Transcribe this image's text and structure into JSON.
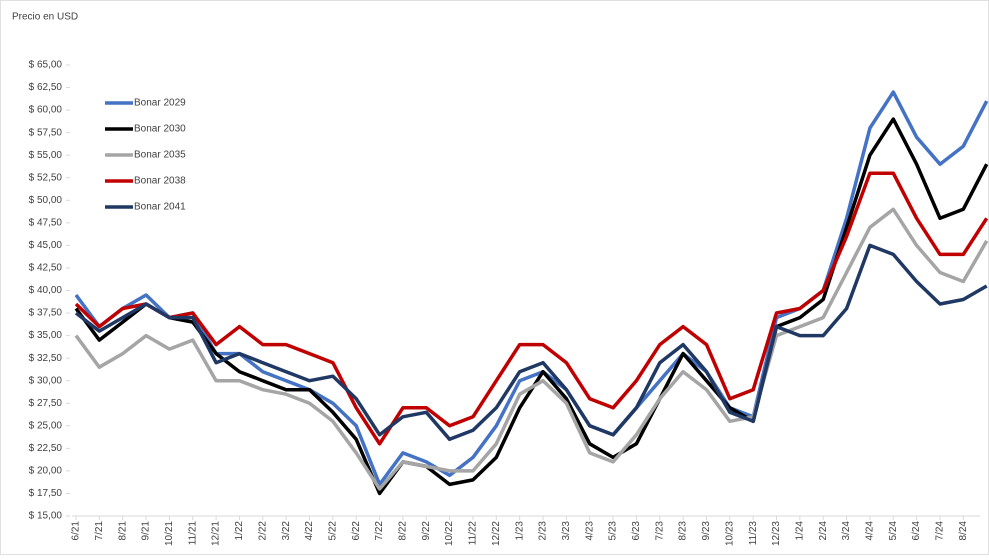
{
  "chart_data": {
    "type": "line",
    "y_label": "Precio en USD",
    "categories": [
      "6/21",
      "7/21",
      "8/21",
      "9/21",
      "10/21",
      "11/21",
      "12/21",
      "1/22",
      "2/22",
      "3/22",
      "4/22",
      "5/22",
      "6/22",
      "7/22",
      "8/22",
      "9/22",
      "10/22",
      "11/22",
      "12/22",
      "1/23",
      "2/23",
      "3/23",
      "4/23",
      "5/23",
      "6/23",
      "7/23",
      "8/23",
      "9/23",
      "10/23",
      "11/23",
      "12/23",
      "1/24",
      "2/24",
      "3/24",
      "4/24",
      "5/24",
      "6/24",
      "7/24",
      "8/24",
      null
    ],
    "series": [
      {
        "name": "Bonar 2029",
        "color": "#4472c4",
        "values": [
          39.5,
          36,
          38,
          39.5,
          37,
          37.5,
          33,
          33,
          31,
          30,
          29,
          27.5,
          25,
          18.5,
          22,
          21,
          19.5,
          21.5,
          25,
          30,
          31,
          29,
          25,
          24,
          27,
          30,
          33,
          31,
          27,
          26,
          37,
          38,
          40,
          48,
          58,
          62,
          57,
          54,
          56,
          61
        ]
      },
      {
        "name": "Bonar 2030",
        "color": "#000000",
        "values": [
          38,
          34.5,
          36.5,
          38.5,
          37,
          36.5,
          33,
          31,
          30,
          29,
          29,
          26.5,
          23.5,
          17.5,
          21,
          20.5,
          18.5,
          19,
          21.5,
          27,
          31,
          28,
          23,
          21.5,
          23,
          28,
          33,
          30,
          27,
          25.5,
          36,
          37,
          39,
          47,
          55,
          59,
          54,
          48,
          49,
          54
        ]
      },
      {
        "name": "Bonar 2035",
        "color": "#a5a5a5",
        "values": [
          35,
          31.5,
          33,
          35,
          33.5,
          34.5,
          30,
          30,
          29,
          28.5,
          27.5,
          25.5,
          22,
          18,
          21,
          20.5,
          20,
          20,
          23,
          28.5,
          30,
          27.5,
          22,
          21,
          24,
          28,
          31,
          29,
          25.5,
          26,
          35,
          36,
          37,
          42,
          47,
          49,
          45,
          42,
          41,
          45.5
        ]
      },
      {
        "name": "Bonar 2038",
        "color": "#c00000",
        "values": [
          38.5,
          36,
          38,
          38.5,
          37,
          37.5,
          34,
          36,
          34,
          34,
          33,
          32,
          27,
          23,
          27,
          27,
          25,
          26,
          30,
          34,
          34,
          32,
          28,
          27,
          30,
          34,
          36,
          34,
          28,
          29,
          37.5,
          38,
          40,
          46,
          53,
          53,
          48,
          44,
          44,
          48
        ]
      },
      {
        "name": "Bonar 2041",
        "color": "#203864",
        "values": [
          37.5,
          35.5,
          37,
          38.5,
          37,
          37,
          32,
          33,
          32,
          31,
          30,
          30.5,
          28,
          24,
          26,
          26.5,
          23.5,
          24.5,
          27,
          31,
          32,
          29,
          25,
          24,
          27,
          32,
          34,
          31,
          26.5,
          25.5,
          36,
          35,
          35,
          38,
          45,
          44,
          41,
          38.5,
          39,
          40.5
        ]
      }
    ],
    "ylim": [
      15,
      65
    ],
    "yticks": [
      {
        "value": 15,
        "label": "$ 15,00"
      },
      {
        "value": 17.5,
        "label": "$ 17,50"
      },
      {
        "value": 20,
        "label": "$ 20,00"
      },
      {
        "value": 22.5,
        "label": "$ 22,50"
      },
      {
        "value": 25,
        "label": "$ 25,00"
      },
      {
        "value": 27.5,
        "label": "$ 27,50"
      },
      {
        "value": 30,
        "label": "$ 30,00"
      },
      {
        "value": 32.5,
        "label": "$ 32,50"
      },
      {
        "value": 35,
        "label": "$ 35,00"
      },
      {
        "value": 37.5,
        "label": "$ 37,50"
      },
      {
        "value": 40,
        "label": "$ 40,00"
      },
      {
        "value": 42.5,
        "label": "$ 42,50"
      },
      {
        "value": 45,
        "label": "$ 45,00"
      },
      {
        "value": 47.5,
        "label": "$ 47,50"
      },
      {
        "value": 50,
        "label": "$ 50,00"
      },
      {
        "value": 52.5,
        "label": "$ 52,50"
      },
      {
        "value": 55,
        "label": "$ 55,00"
      },
      {
        "value": 57.5,
        "label": "$ 57,50"
      },
      {
        "value": 60,
        "label": "$ 60,00"
      },
      {
        "value": 62.5,
        "label": "$ 62,50"
      },
      {
        "value": 65,
        "label": "$ 65,00"
      }
    ],
    "grid": false,
    "legend": "top-left"
  }
}
